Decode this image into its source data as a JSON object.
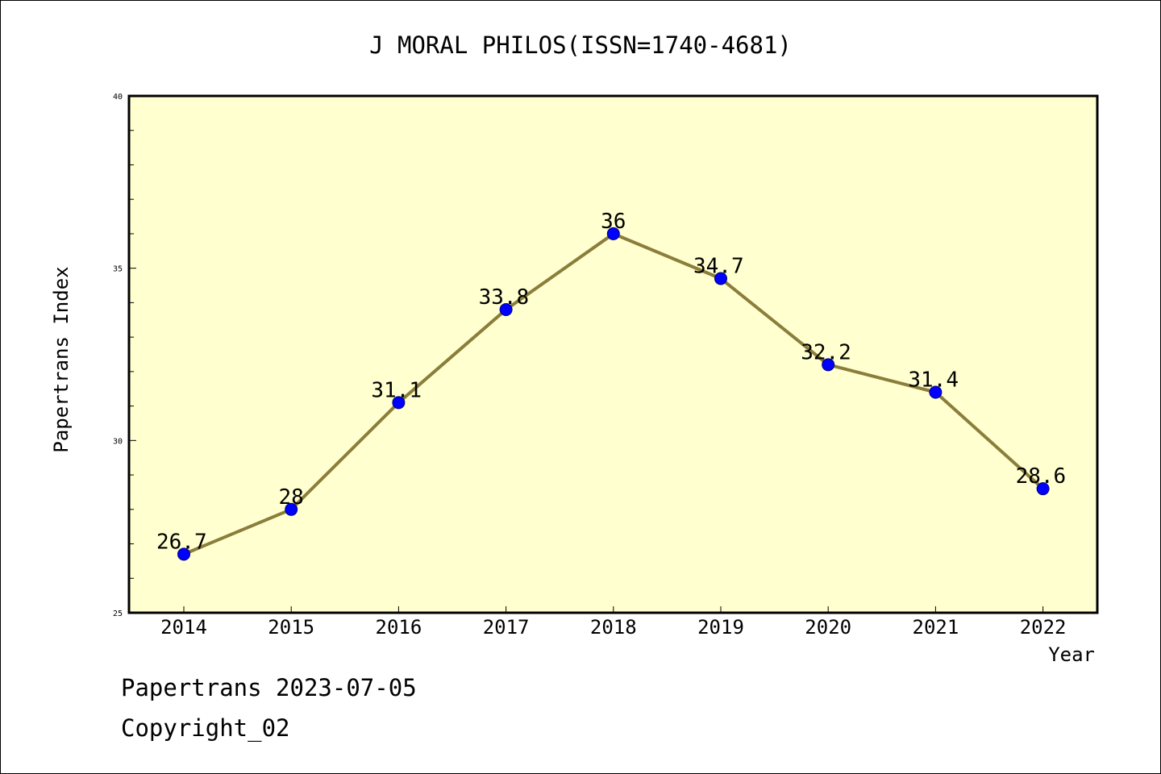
{
  "chart_data": {
    "type": "line",
    "title": "J MORAL PHILOS(ISSN=1740-4681)",
    "xlabel": "Year",
    "ylabel": "Papertrans Index",
    "categories": [
      "2014",
      "2015",
      "2016",
      "2017",
      "2018",
      "2019",
      "2020",
      "2021",
      "2022"
    ],
    "series": [
      {
        "values": [
          26.7,
          28,
          31.1,
          33.8,
          36,
          34.7,
          32.2,
          31.4,
          28.6
        ],
        "labels": [
          "26.7",
          "28",
          "31.1",
          "33.8",
          "36",
          "34.7",
          "32.2",
          "31.4",
          "28.6"
        ]
      }
    ],
    "ylim": [
      25,
      40
    ],
    "yticks": [
      "25",
      "30",
      "35",
      "40"
    ],
    "grid": false,
    "legend": "none",
    "colors": {
      "plot_background": "#FFFFD0",
      "line": "#8B7D3A",
      "marker": "#0000FF"
    }
  },
  "footer": {
    "line1": "Papertrans 2023-07-05",
    "line2": "Copyright_02"
  }
}
